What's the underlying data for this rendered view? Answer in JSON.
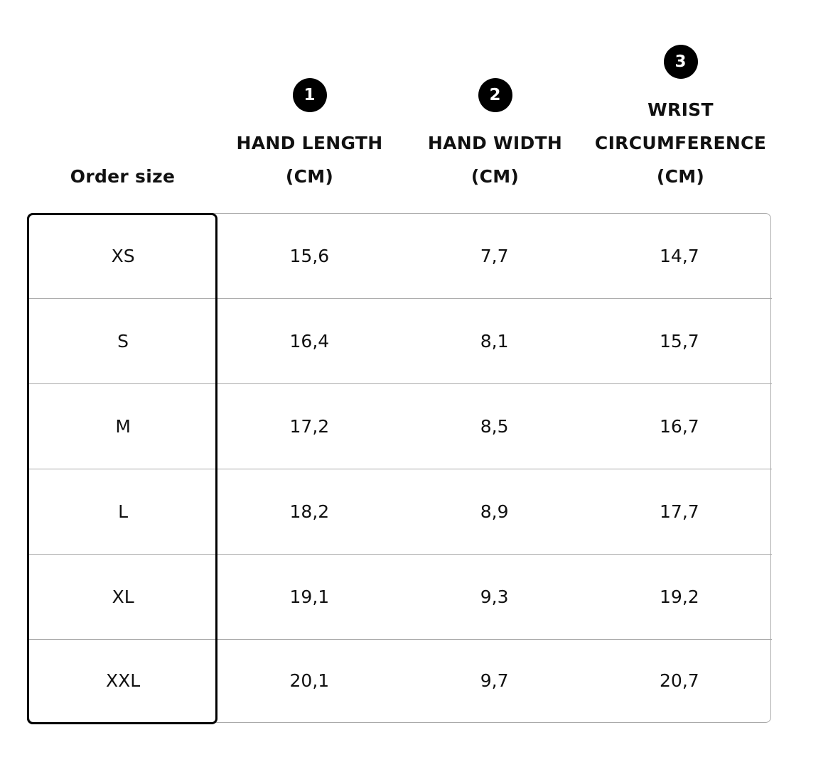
{
  "headers": {
    "order_size": "Order size",
    "columns": [
      {
        "badge": "1",
        "lines": [
          "HAND LENGTH",
          "(CM)"
        ]
      },
      {
        "badge": "2",
        "lines": [
          "HAND WIDTH",
          "(CM)"
        ]
      },
      {
        "badge": "3",
        "lines": [
          "WRIST",
          "CIRCUMFERENCE",
          "(CM)"
        ]
      }
    ]
  },
  "rows": [
    {
      "size": "XS",
      "values": [
        "15,6",
        "7,7",
        "14,7"
      ]
    },
    {
      "size": "S",
      "values": [
        "16,4",
        "8,1",
        "15,7"
      ]
    },
    {
      "size": "M",
      "values": [
        "17,2",
        "8,5",
        "16,7"
      ]
    },
    {
      "size": "L",
      "values": [
        "18,2",
        "8,9",
        "17,7"
      ]
    },
    {
      "size": "XL",
      "values": [
        "19,1",
        "9,3",
        "19,2"
      ]
    },
    {
      "size": "XXL",
      "values": [
        "20,1",
        "9,7",
        "20,7"
      ]
    }
  ],
  "colors": {
    "badge": "#000000",
    "grid": "#aaaaaa",
    "selected_border": "#000000"
  }
}
